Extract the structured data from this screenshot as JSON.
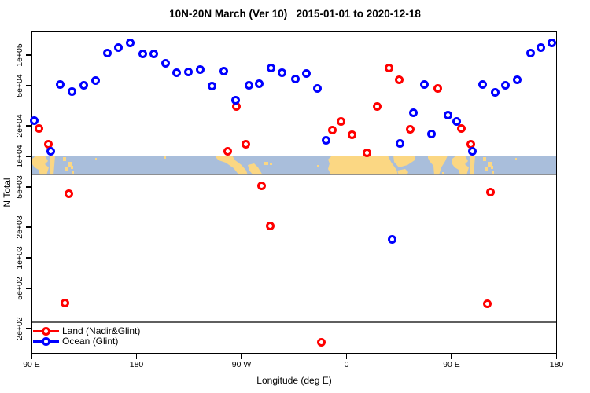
{
  "title": "10N-20N March (Ver 10)   2015-01-01 to 2020-12-18",
  "colors": {
    "land": "#ff0000",
    "ocean": "#0000ff",
    "map_land": "#fbd783",
    "map_ocean": "#a9bedb",
    "map_border": "#8a8a8a",
    "threshold": "#5f5f5f"
  },
  "legend": {
    "items": [
      {
        "label": "Land (Nadir&Glint)",
        "color_key": "land"
      },
      {
        "label": "Ocean (Glint)",
        "color_key": "ocean"
      }
    ]
  },
  "chart_data": {
    "type": "scatter",
    "title": "10N-20N March (Ver 10)   2015-01-01 to 2020-12-18",
    "xlabel": "Longitude (deg E)",
    "ylabel": "N Total",
    "x_axis_note": "longitude wraps: 90E to 180 to 90W to 0 to 90E to 180 (continuous 90..540)",
    "xlim": [
      90,
      540
    ],
    "ylim_log": [
      110,
      170000
    ],
    "grid": false,
    "legend_position": "bottom-left",
    "x_ticks": [
      {
        "lon": 90,
        "label": "90 E"
      },
      {
        "lon": 180,
        "label": "180"
      },
      {
        "lon": 270,
        "label": "90 W"
      },
      {
        "lon": 360,
        "label": "0"
      },
      {
        "lon": 450,
        "label": "90 E"
      },
      {
        "lon": 540,
        "label": "180"
      }
    ],
    "y_ticks": [
      {
        "v": 100000,
        "label": "1e+05"
      },
      {
        "v": 50000,
        "label": "5e+04"
      },
      {
        "v": 20000,
        "label": "2e+04"
      },
      {
        "v": 10000,
        "label": "1e+04"
      },
      {
        "v": 5000,
        "label": "5e+03"
      },
      {
        "v": 2000,
        "label": "2e+03"
      },
      {
        "v": 1000,
        "label": "1e+03"
      },
      {
        "v": 500,
        "label": "5e+02"
      },
      {
        "v": 200,
        "label": "2e+02"
      }
    ],
    "threshold_line_n": 230,
    "map_band": {
      "n_top": 10000,
      "n_bottom": 6000,
      "description": "world map strip of the 10N-20N latitude band; land tan, ocean light blue"
    },
    "series": [
      {
        "name": "Land (Nadir&Glint)",
        "color_key": "land",
        "points": [
          [
            96.1,
            18700
          ],
          [
            104.2,
            13200
          ],
          [
            118.5,
            357
          ],
          [
            122.2,
            4300
          ],
          [
            257.9,
            11300
          ],
          [
            265.8,
            31200
          ],
          [
            273.6,
            13200
          ],
          [
            287.4,
            5130
          ],
          [
            294.8,
            2070
          ],
          [
            338.1,
            148
          ],
          [
            348.0,
            18200
          ],
          [
            355.6,
            22000
          ],
          [
            364.9,
            16400
          ],
          [
            377.2,
            10900
          ],
          [
            386.2,
            30900
          ],
          [
            396.1,
            74800
          ],
          [
            405.3,
            57100
          ],
          [
            414.3,
            18500
          ],
          [
            438.3,
            46500
          ],
          [
            458.1,
            19000
          ],
          [
            466.4,
            13200
          ],
          [
            480.5,
            353
          ],
          [
            483.2,
            4430
          ]
        ]
      },
      {
        "name": "Ocean (Glint)",
        "color_key": "ocean",
        "points": [
          [
            92.2,
            22700
          ],
          [
            106.4,
            11300
          ],
          [
            114.7,
            51400
          ],
          [
            124.9,
            43800
          ],
          [
            134.5,
            50500
          ],
          [
            145.1,
            56200
          ],
          [
            155.2,
            104000
          ],
          [
            164.6,
            118000
          ],
          [
            174.3,
            131000
          ],
          [
            185.1,
            102000
          ],
          [
            195.0,
            103000
          ],
          [
            205.1,
            82600
          ],
          [
            214.3,
            67500
          ],
          [
            224.4,
            68300
          ],
          [
            234.3,
            72500
          ],
          [
            244.9,
            49200
          ],
          [
            254.7,
            69600
          ],
          [
            264.8,
            36100
          ],
          [
            276.6,
            50700
          ],
          [
            285.1,
            51900
          ],
          [
            295.6,
            75100
          ],
          [
            304.6,
            67300
          ],
          [
            316.5,
            57800
          ],
          [
            325.3,
            65600
          ],
          [
            335.0,
            47200
          ],
          [
            342.4,
            14500
          ],
          [
            399.0,
            1510
          ],
          [
            405.7,
            13500
          ],
          [
            417.0,
            26700
          ],
          [
            426.6,
            51200
          ],
          [
            432.7,
            16600
          ],
          [
            446.9,
            25600
          ],
          [
            454.7,
            22300
          ],
          [
            468.2,
            11300
          ],
          [
            476.5,
            51100
          ],
          [
            487.3,
            43200
          ],
          [
            496.3,
            50200
          ],
          [
            506.4,
            57100
          ],
          [
            517.6,
            104000
          ],
          [
            526.6,
            118000
          ],
          [
            536.1,
            133000
          ]
        ]
      }
    ]
  }
}
